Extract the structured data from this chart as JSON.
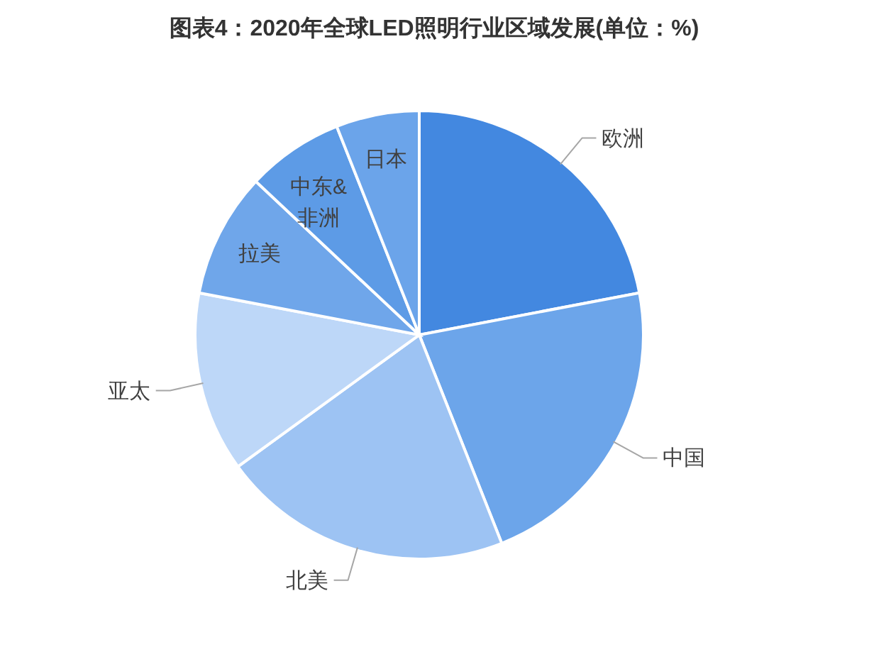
{
  "chart_data": {
    "type": "pie",
    "title": "图表4：2020年全球LED照明行业区域发展(单位：%)",
    "categories": [
      "欧洲",
      "中国",
      "北美",
      "亚太",
      "拉美",
      "中东&非洲",
      "日本"
    ],
    "values": [
      22,
      22,
      21,
      13,
      9,
      7,
      6
    ],
    "colors": [
      "#4388e0",
      "#6ca5ea",
      "#9dc3f3",
      "#bdd7f8",
      "#6fa6ea",
      "#5d9be6",
      "#6ba4ea"
    ]
  }
}
